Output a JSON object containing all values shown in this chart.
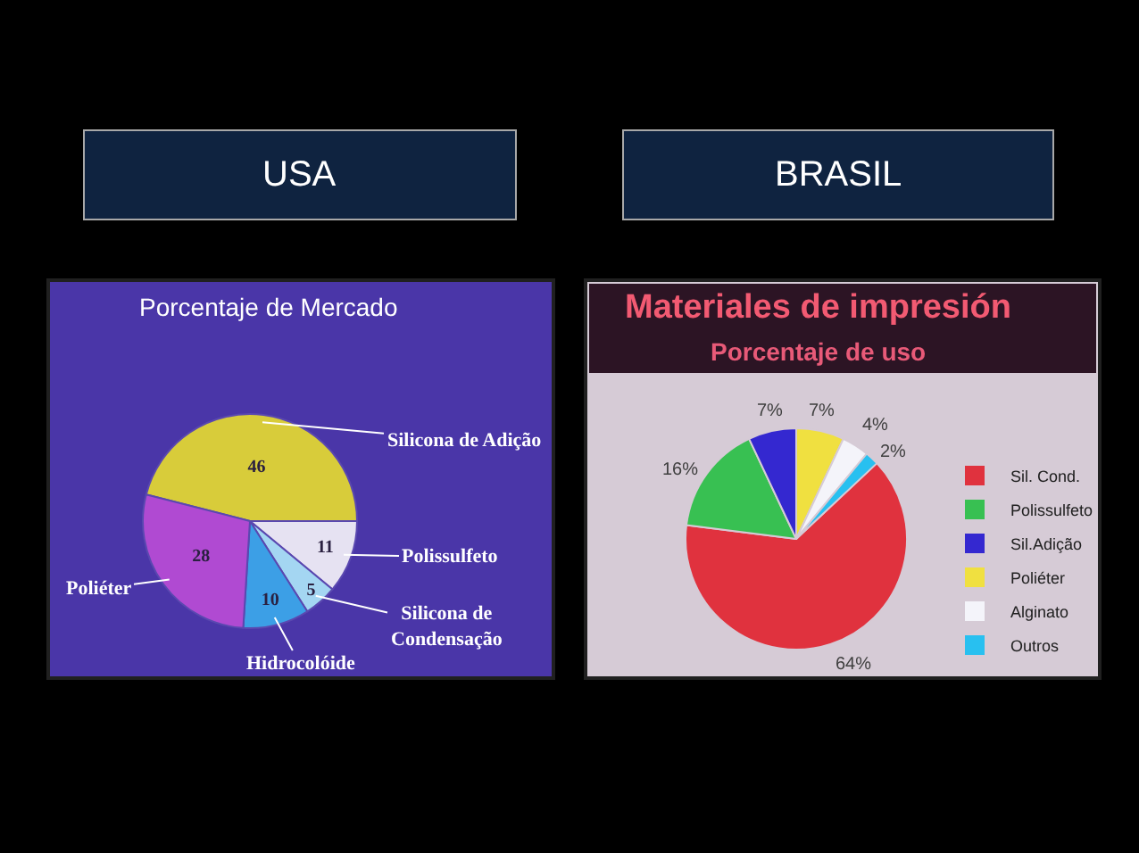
{
  "chart_data": [
    {
      "type": "pie",
      "title": "USA",
      "subtitle": "Porcentaje de Mercado",
      "categories": [
        "Silicona de Adição",
        "Polissulfeto",
        "Silicona de Condensação",
        "Hidrocolóide",
        "Poliéter"
      ],
      "values": [
        46,
        11,
        5,
        10,
        28
      ],
      "colors": [
        "#d8cc3a",
        "#e6e2f2",
        "#a4d6f2",
        "#3c9fe6",
        "#b04ad2"
      ],
      "data_labels": true,
      "legend": false
    },
    {
      "type": "pie",
      "title": "BRASIL",
      "subtitle": "Materiales de impresión",
      "annotations": [
        "Porcentaje de uso"
      ],
      "categories": [
        "Sil. Cond.",
        "Polissulfeto",
        "Sil.Adição",
        "Poliéter",
        "Alginato",
        "Outros"
      ],
      "values": [
        64,
        16,
        7,
        7,
        4,
        2
      ],
      "colors": [
        "#e0323e",
        "#38c052",
        "#3428d0",
        "#f0e040",
        "#f4f4fa",
        "#28c0f0"
      ],
      "value_labels": [
        "64%",
        "16%",
        "7%",
        "7%",
        "4%",
        "2%"
      ],
      "legend": "right"
    }
  ]
}
